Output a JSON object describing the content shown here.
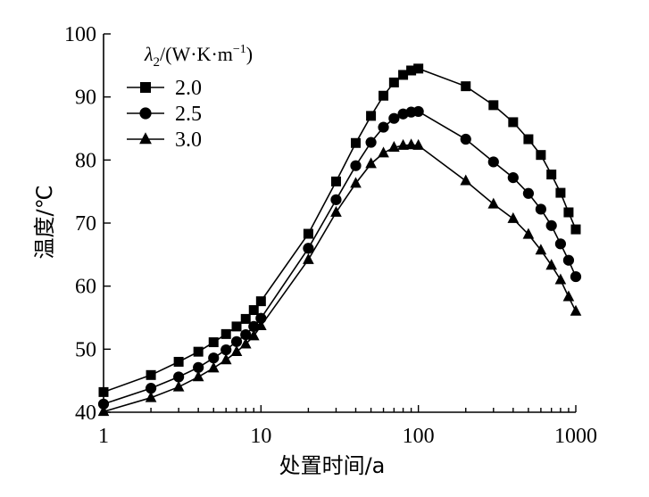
{
  "chart_data": {
    "type": "line",
    "xscale": "log",
    "title": "",
    "xlabel": "处置时间/a",
    "ylabel": "温度/℃",
    "xlim": [
      1,
      1000
    ],
    "ylim": [
      40,
      100
    ],
    "xticks": [
      1,
      10,
      100,
      1000
    ],
    "xtick_labels": [
      "1",
      "10",
      "100",
      "1000"
    ],
    "yticks": [
      40,
      50,
      60,
      70,
      80,
      90,
      100
    ],
    "ytick_labels": [
      "40",
      "50",
      "60",
      "70",
      "80",
      "90",
      "100"
    ],
    "grid": false,
    "legend": {
      "position": "top-left",
      "title_symbol": "λ",
      "title_sub": "2",
      "title_unit": "/(W·K·m",
      "title_sup": "−1",
      "title_close": ")"
    },
    "series": [
      {
        "name": "2.0",
        "marker": "square",
        "x": [
          1,
          2,
          3,
          4,
          5,
          6,
          7,
          8,
          9,
          10,
          20,
          30,
          40,
          50,
          60,
          70,
          80,
          90,
          100,
          200,
          300,
          400,
          500,
          600,
          700,
          800,
          900,
          1000
        ],
        "y": [
          43.2,
          45.9,
          48.0,
          49.6,
          51.1,
          52.4,
          53.6,
          54.8,
          56.2,
          57.6,
          68.3,
          76.6,
          82.7,
          87.0,
          90.2,
          92.3,
          93.5,
          94.2,
          94.5,
          91.7,
          88.7,
          86.0,
          83.3,
          80.8,
          77.7,
          74.8,
          71.7,
          69.0
        ]
      },
      {
        "name": "2.5",
        "marker": "circle",
        "x": [
          1,
          2,
          3,
          4,
          5,
          6,
          7,
          8,
          9,
          10,
          20,
          30,
          40,
          50,
          60,
          70,
          80,
          90,
          100,
          200,
          300,
          400,
          500,
          600,
          700,
          800,
          900,
          1000
        ],
        "y": [
          41.3,
          43.8,
          45.6,
          47.1,
          48.6,
          49.9,
          51.2,
          52.3,
          53.6,
          54.9,
          66.0,
          73.7,
          79.1,
          82.8,
          85.2,
          86.6,
          87.3,
          87.6,
          87.7,
          83.3,
          79.7,
          77.2,
          74.7,
          72.2,
          69.6,
          66.7,
          64.1,
          61.5
        ]
      },
      {
        "name": "3.0",
        "marker": "triangle",
        "x": [
          1,
          2,
          3,
          4,
          5,
          6,
          7,
          8,
          9,
          10,
          20,
          30,
          40,
          50,
          60,
          70,
          80,
          90,
          100,
          200,
          300,
          400,
          500,
          600,
          700,
          800,
          900,
          1000
        ],
        "y": [
          40.1,
          42.3,
          44.0,
          45.6,
          47.0,
          48.3,
          49.6,
          50.8,
          52.1,
          53.7,
          64.2,
          71.7,
          76.3,
          79.4,
          81.1,
          82.0,
          82.3,
          82.4,
          82.3,
          76.7,
          73.0,
          70.7,
          68.2,
          65.7,
          63.3,
          61.0,
          58.3,
          56.0
        ]
      }
    ]
  }
}
